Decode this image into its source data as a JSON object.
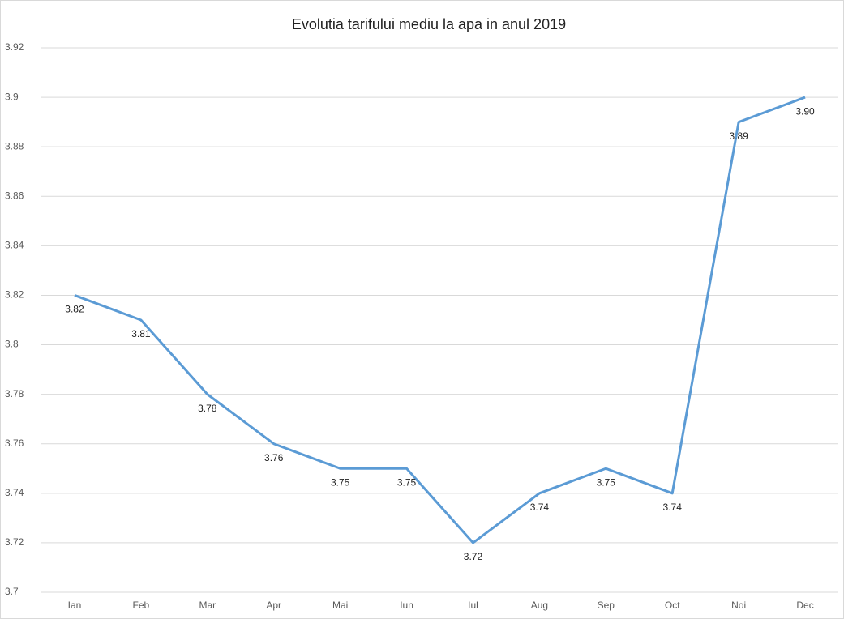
{
  "chart_data": {
    "type": "line",
    "title": "Evolutia tarifului mediu la apa in anul 2019",
    "categories": [
      "Ian",
      "Feb",
      "Mar",
      "Apr",
      "Mai",
      "Iun",
      "Iul",
      "Aug",
      "Sep",
      "Oct",
      "Noi",
      "Dec"
    ],
    "values": [
      3.82,
      3.81,
      3.78,
      3.76,
      3.75,
      3.75,
      3.72,
      3.74,
      3.75,
      3.74,
      3.89,
      3.9
    ],
    "value_labels": [
      "3.82",
      "3.81",
      "3.78",
      "3.76",
      "3.75",
      "3.75",
      "3.72",
      "3.74",
      "3.75",
      "3.74",
      "3.89",
      "3.90"
    ],
    "color": "#5b9bd5",
    "ylim": [
      3.7,
      3.92
    ],
    "yticks": [
      3.7,
      3.72,
      3.74,
      3.76,
      3.78,
      3.8,
      3.82,
      3.84,
      3.86,
      3.88,
      3.9,
      3.92
    ],
    "grid": true
  }
}
